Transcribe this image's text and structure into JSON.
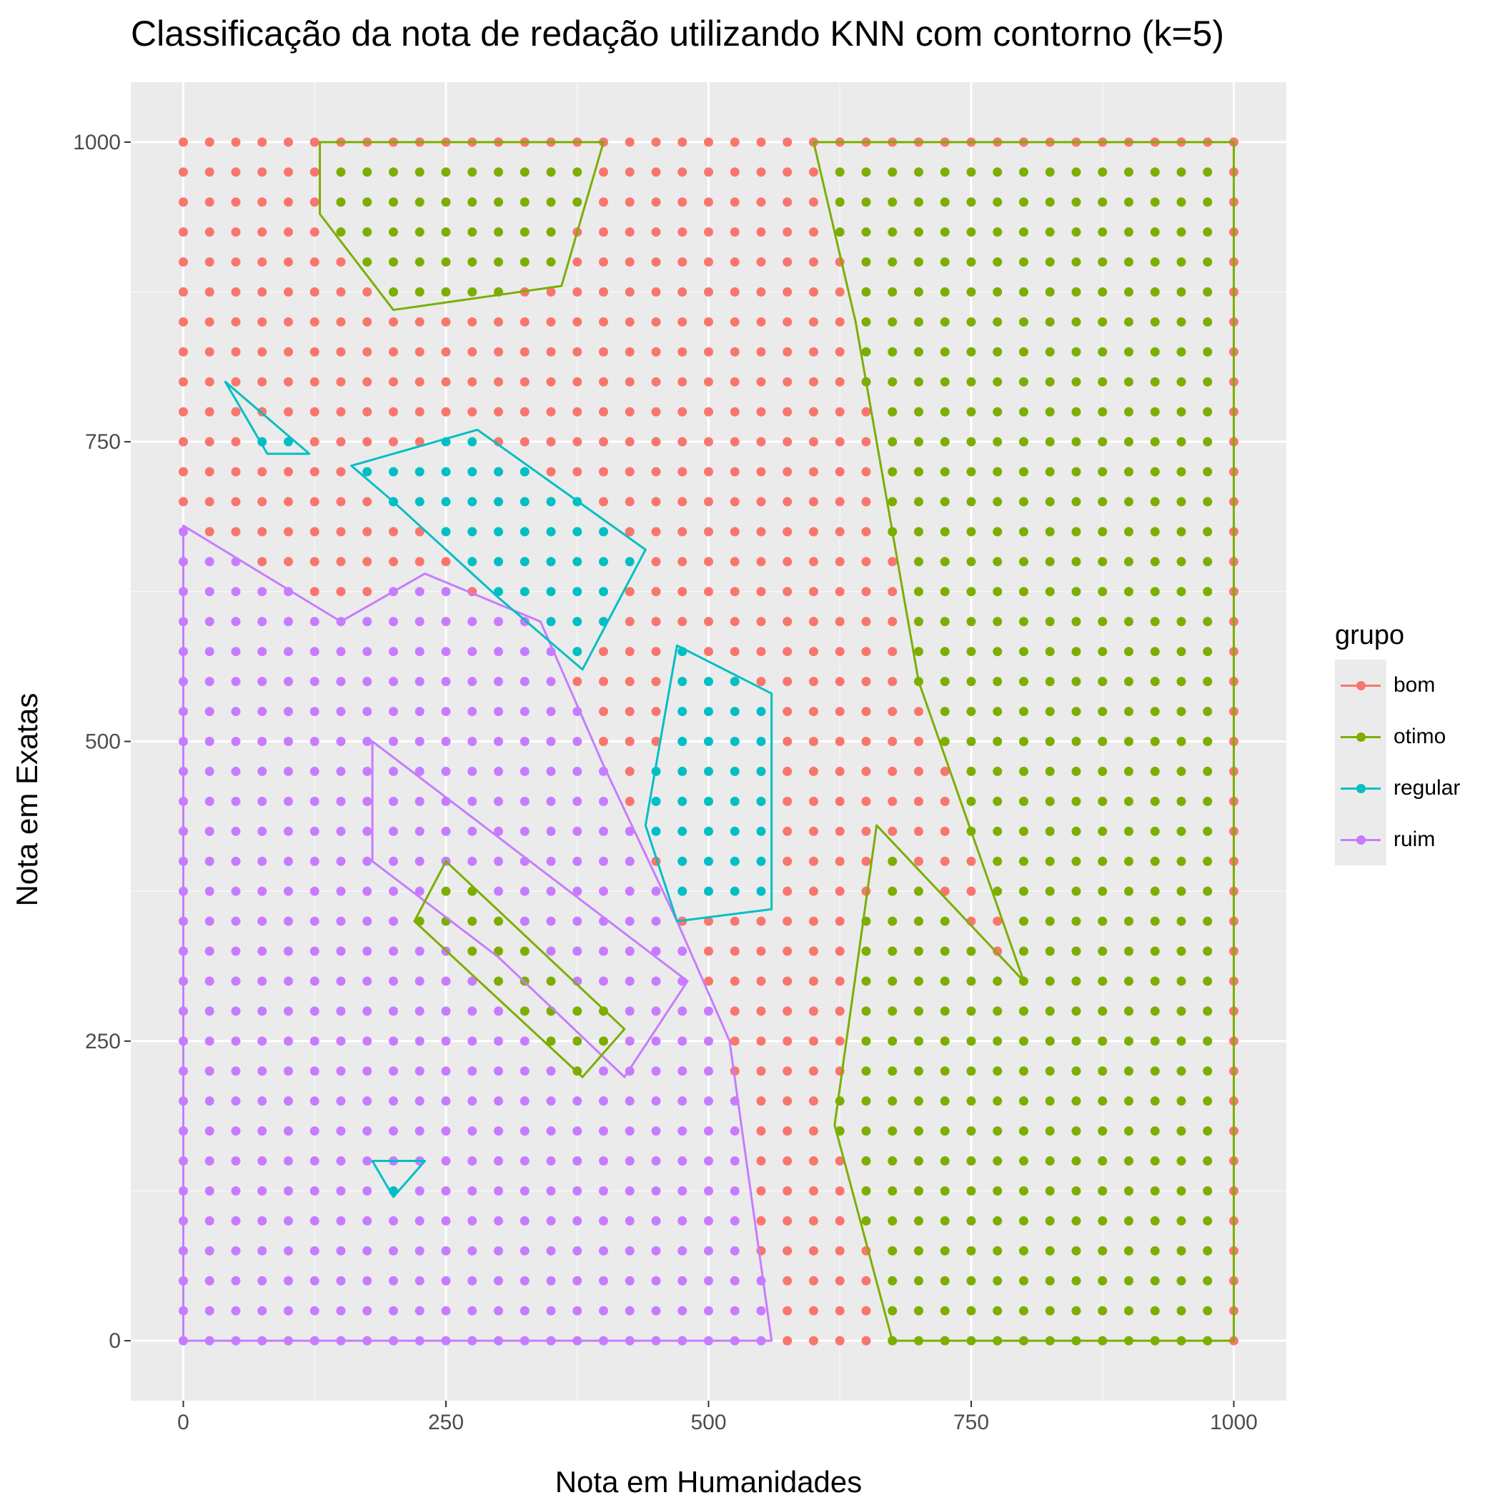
{
  "chart_data": {
    "type": "scatter",
    "title": "Classificação da nota de redação utilizando KNN com contorno (k=5)",
    "xlabel": "Nota em Humanidades",
    "ylabel": "Nota em Exatas",
    "xlim": [
      -50,
      1050
    ],
    "ylim": [
      -50,
      1050
    ],
    "xticks": [
      0,
      250,
      500,
      750,
      1000
    ],
    "yticks": [
      0,
      250,
      500,
      750,
      1000
    ],
    "grid": true,
    "legend_title": "grupo",
    "legend_position": "right",
    "grid_step": 25,
    "grid_range": [
      0,
      1000
    ],
    "categories": [
      "bom",
      "otimo",
      "regular",
      "ruim"
    ],
    "colors": {
      "bom": "#F8766D",
      "otimo": "#7CAE00",
      "regular": "#00BFC4",
      "ruim": "#C77CFF"
    },
    "regions": [
      {
        "name": "otimo",
        "polygon": [
          [
            600,
            1000
          ],
          [
            1000,
            1000
          ],
          [
            1000,
            0
          ],
          [
            675,
            0
          ],
          [
            620,
            180
          ],
          [
            660,
            430
          ],
          [
            800,
            300
          ],
          [
            700,
            550
          ],
          [
            640,
            850
          ]
        ]
      },
      {
        "name": "ruim",
        "polygon": [
          [
            0,
            0
          ],
          [
            560,
            0
          ],
          [
            520,
            250
          ],
          [
            470,
            350
          ],
          [
            400,
            480
          ],
          [
            340,
            600
          ],
          [
            230,
            640
          ],
          [
            150,
            600
          ],
          [
            0,
            680
          ]
        ]
      },
      {
        "name": "regular",
        "polygon": [
          [
            160,
            730
          ],
          [
            280,
            760
          ],
          [
            440,
            660
          ],
          [
            380,
            560
          ],
          [
            300,
            620
          ],
          [
            200,
            700
          ]
        ]
      },
      {
        "name": "regular",
        "polygon": [
          [
            470,
            580
          ],
          [
            560,
            540
          ],
          [
            560,
            360
          ],
          [
            470,
            350
          ],
          [
            440,
            430
          ]
        ]
      },
      {
        "name": "ruim",
        "polygon": [
          [
            180,
            500
          ],
          [
            480,
            300
          ],
          [
            420,
            220
          ],
          [
            300,
            320
          ],
          [
            180,
            400
          ]
        ]
      },
      {
        "name": "otimo",
        "polygon": [
          [
            250,
            400
          ],
          [
            420,
            260
          ],
          [
            380,
            220
          ],
          [
            220,
            350
          ]
        ]
      },
      {
        "name": "regular",
        "polygon": [
          [
            180,
            150
          ],
          [
            230,
            150
          ],
          [
            200,
            120
          ]
        ]
      },
      {
        "name": "regular",
        "polygon": [
          [
            40,
            800
          ],
          [
            120,
            740
          ],
          [
            80,
            740
          ]
        ]
      },
      {
        "name": "otimo",
        "polygon": [
          [
            130,
            1000
          ],
          [
            400,
            1000
          ],
          [
            360,
            880
          ],
          [
            200,
            860
          ],
          [
            130,
            940
          ]
        ]
      }
    ]
  }
}
